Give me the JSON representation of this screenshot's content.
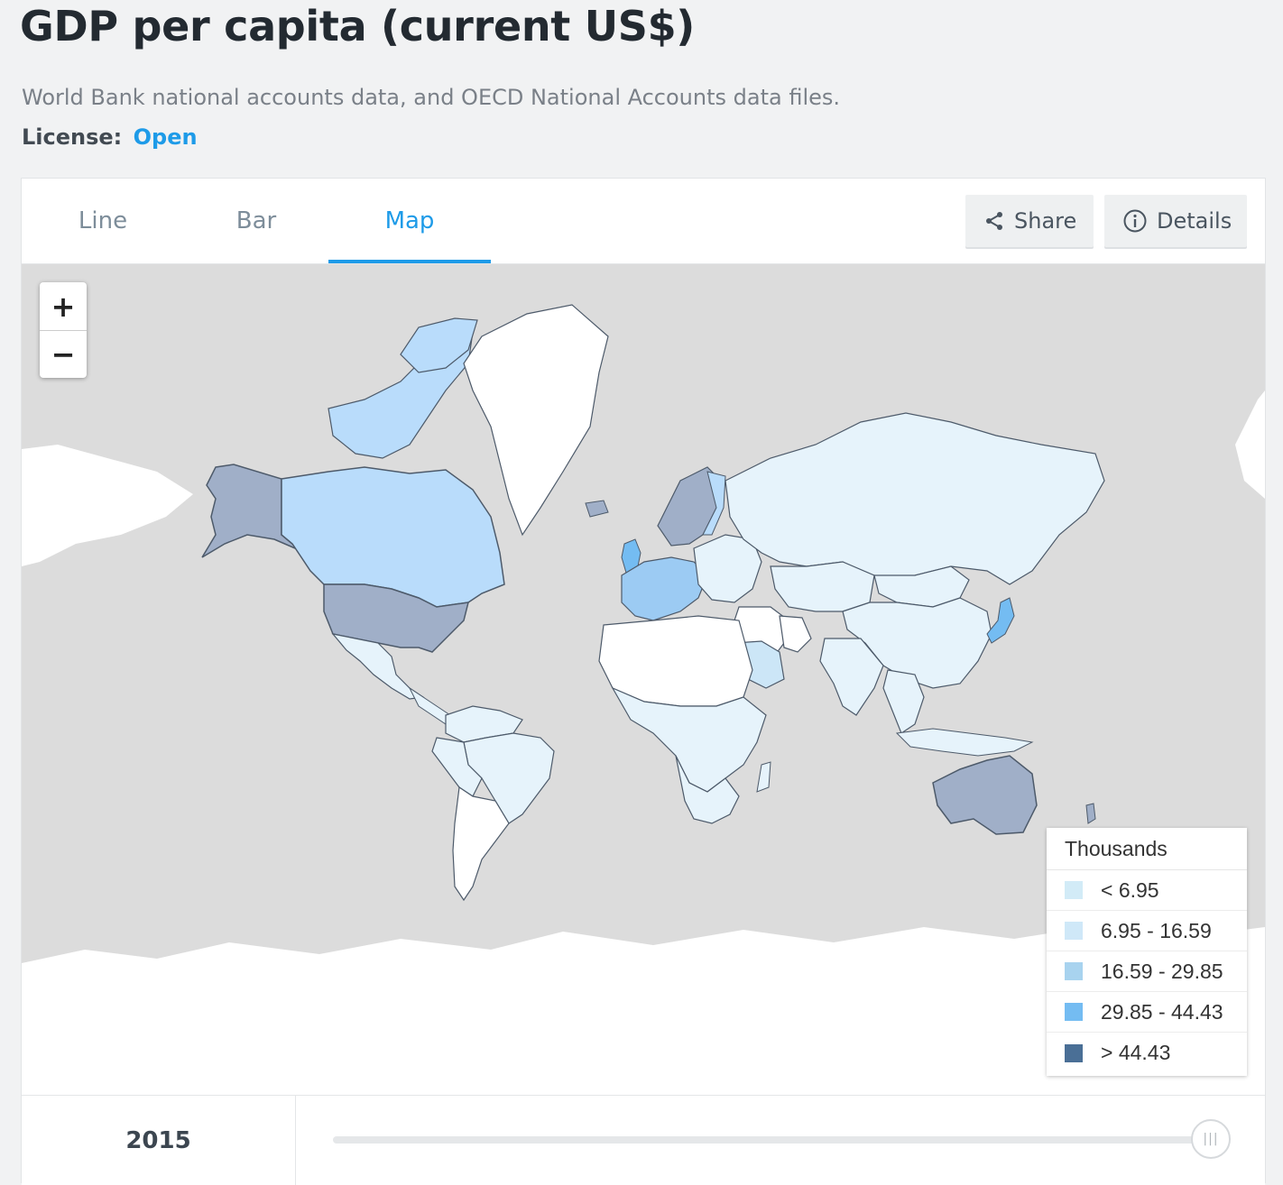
{
  "header": {
    "title": "GDP per capita (current US$)",
    "source": "World Bank national accounts data, and OECD National Accounts data files.",
    "license_label": "License:",
    "license_value": "Open"
  },
  "tabs": [
    {
      "label": "Line"
    },
    {
      "label": "Bar"
    },
    {
      "label": "Map"
    }
  ],
  "active_tab": "Map",
  "toolbar": {
    "share_label": "Share",
    "details_label": "Details"
  },
  "zoom": {
    "in_label": "+",
    "out_label": "−"
  },
  "legend": {
    "title": "Thousands",
    "items": [
      {
        "label": "< 6.95",
        "color": "#d2ebf7"
      },
      {
        "label": "6.95 - 16.59",
        "color": "#cfe8f8"
      },
      {
        "label": "16.59 - 29.85",
        "color": "#a8d3ef"
      },
      {
        "label": "29.85 - 44.43",
        "color": "#74bcf2"
      },
      {
        "label": "> 44.43",
        "color": "#4a6f96"
      }
    ]
  },
  "timeline": {
    "year": "2015",
    "position": 1.0
  },
  "colors": {
    "accent": "#1e9be8",
    "ocean": "#dcdcdc",
    "no_data_land": "#ffffff"
  }
}
